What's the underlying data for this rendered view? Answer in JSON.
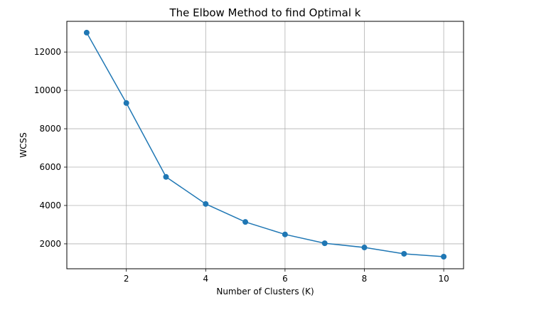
{
  "chart_data": {
    "type": "line",
    "title": "The Elbow Method to find Optimal k",
    "xlabel": "Number of Clusters (K)",
    "ylabel": "WCSS",
    "x": [
      1,
      2,
      3,
      4,
      5,
      6,
      7,
      8,
      9,
      10
    ],
    "series": [
      {
        "values": [
          13010,
          9340,
          5490,
          4080,
          3140,
          2490,
          2030,
          1810,
          1480,
          1330
        ],
        "color": "#1f77b4",
        "marker": "circle"
      }
    ],
    "xlim": [
      0.5,
      10.5
    ],
    "ylim": [
      700,
      13600
    ],
    "xticks": [
      2,
      4,
      6,
      8,
      10
    ],
    "yticks": [
      2000,
      4000,
      6000,
      8000,
      10000,
      12000
    ],
    "grid": true,
    "legend": false
  }
}
